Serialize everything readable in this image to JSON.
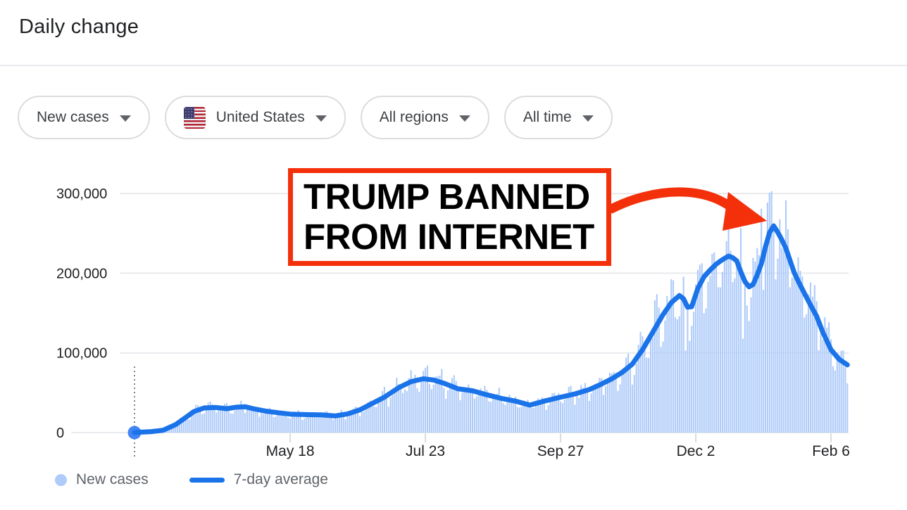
{
  "header": {
    "title": "Daily change"
  },
  "filters": [
    {
      "label": "New cases"
    },
    {
      "label": "United States"
    },
    {
      "label": "All regions"
    },
    {
      "label": "All time"
    }
  ],
  "annotation": {
    "line1": "TRUMP BANNED",
    "line2": "FROM INTERNET",
    "color": "#f4300b"
  },
  "chart_data": {
    "type": "bar+line",
    "title": "Daily change",
    "xlabel": "",
    "ylabel": "",
    "x_ticks": [
      {
        "day": 76,
        "label": "May 18"
      },
      {
        "day": 142,
        "label": "Jul 23"
      },
      {
        "day": 208,
        "label": "Sep 27"
      },
      {
        "day": 274,
        "label": "Dec 2"
      },
      {
        "day": 340,
        "label": "Feb 6"
      }
    ],
    "y_ticks": [
      {
        "value": 0,
        "label": "0"
      },
      {
        "value": 100000,
        "label": "100,000"
      },
      {
        "value": 200000,
        "label": "200,000"
      },
      {
        "value": 300000,
        "label": "300,000"
      }
    ],
    "ylim": [
      0,
      330000
    ],
    "x_range_days": [
      0,
      348
    ],
    "grid": true,
    "legend_position": "bottom-left",
    "series": [
      {
        "name": "New cases",
        "type": "bar",
        "color": "#aecbfa"
      },
      {
        "name": "7-day average",
        "type": "line",
        "color": "#1a73e8"
      }
    ],
    "avg_anchors": [
      [
        0,
        300
      ],
      [
        8,
        1200
      ],
      [
        14,
        3000
      ],
      [
        20,
        10000
      ],
      [
        25,
        19000
      ],
      [
        29,
        26500
      ],
      [
        34,
        31000
      ],
      [
        40,
        31500
      ],
      [
        45,
        30000
      ],
      [
        50,
        32000
      ],
      [
        54,
        32500
      ],
      [
        58,
        30000
      ],
      [
        64,
        27000
      ],
      [
        70,
        25000
      ],
      [
        76,
        23200
      ],
      [
        84,
        22600
      ],
      [
        91,
        22300
      ],
      [
        98,
        21000
      ],
      [
        104,
        23500
      ],
      [
        110,
        28500
      ],
      [
        116,
        36500
      ],
      [
        122,
        44500
      ],
      [
        129,
        56500
      ],
      [
        135,
        64000
      ],
      [
        141,
        67500
      ],
      [
        146,
        66000
      ],
      [
        151,
        62000
      ],
      [
        158,
        55000
      ],
      [
        165,
        52500
      ],
      [
        172,
        47500
      ],
      [
        179,
        43000
      ],
      [
        186,
        39500
      ],
      [
        193,
        34500
      ],
      [
        200,
        39500
      ],
      [
        208,
        44500
      ],
      [
        215,
        48500
      ],
      [
        222,
        54000
      ],
      [
        228,
        61000
      ],
      [
        233,
        67500
      ],
      [
        238,
        75500
      ],
      [
        243,
        86000
      ],
      [
        248,
        104000
      ],
      [
        253,
        126000
      ],
      [
        258,
        148000
      ],
      [
        262,
        163000
      ],
      [
        266,
        172000
      ],
      [
        268,
        168000
      ],
      [
        270,
        157500
      ],
      [
        272,
        158000
      ],
      [
        275,
        181000
      ],
      [
        278,
        195500
      ],
      [
        281,
        204000
      ],
      [
        284,
        211500
      ],
      [
        287,
        217000
      ],
      [
        290,
        221500
      ],
      [
        292,
        219500
      ],
      [
        294,
        215500
      ],
      [
        296,
        201500
      ],
      [
        298,
        189500
      ],
      [
        300,
        183000
      ],
      [
        302,
        186000
      ],
      [
        304,
        198000
      ],
      [
        306,
        212000
      ],
      [
        308,
        233000
      ],
      [
        310,
        251000
      ],
      [
        312,
        259500
      ],
      [
        314,
        251500
      ],
      [
        316,
        242000
      ],
      [
        318,
        231000
      ],
      [
        320,
        216000
      ],
      [
        322,
        201000
      ],
      [
        324,
        190000
      ],
      [
        327,
        175000
      ],
      [
        330,
        160000
      ],
      [
        333,
        146000
      ],
      [
        336,
        126000
      ],
      [
        340,
        104000
      ],
      [
        344,
        92000
      ],
      [
        348,
        85000
      ]
    ],
    "weekday_factors": [
      0.97,
      1.07,
      1.13,
      1.15,
      1.03,
      0.78,
      0.84
    ],
    "outlier_bars": {
      "269": 103000,
      "297": 118000,
      "306": 281000,
      "310": 301000
    },
    "bar_cap": 303000,
    "grid_color": "#e8eaed",
    "tick_color": "#dadce0",
    "axis_text_color": "#202124",
    "legend_text_color": "#5f6368",
    "start_marker": {
      "day": 0,
      "value": 0,
      "dot_color": "#4285f4",
      "line_color": "#80868b"
    }
  }
}
